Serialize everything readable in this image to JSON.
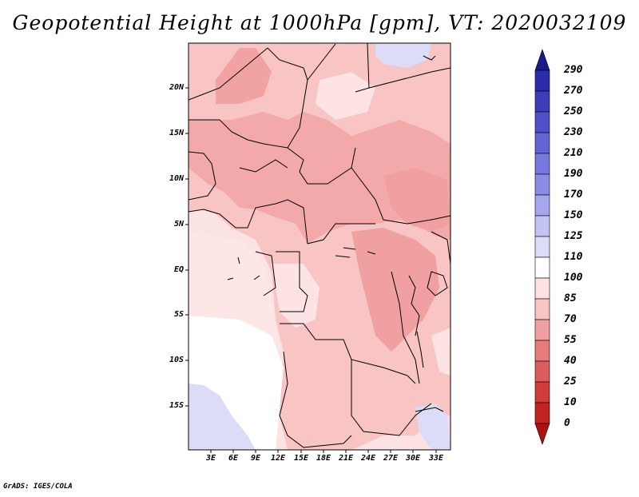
{
  "title": "Geopotential Height at 1000hPa [gpm], VT: 2020032109",
  "footer": "GrADS: IGES/COLA",
  "map": {
    "lon_range_deg": [
      0,
      35
    ],
    "lat_range_deg": [
      -20,
      25
    ],
    "lat_labels": [
      "20N",
      "15N",
      "10N",
      "5N",
      "EQ",
      "5S",
      "10S",
      "15S"
    ],
    "lon_labels": [
      "3E",
      "6E",
      "9E",
      "12E",
      "15E",
      "18E",
      "21E",
      "24E",
      "27E",
      "30E",
      "33E"
    ]
  },
  "colorbar": {
    "labels": [
      "290",
      "270",
      "250",
      "230",
      "210",
      "190",
      "170",
      "150",
      "125",
      "110",
      "100",
      "85",
      "70",
      "55",
      "40",
      "25",
      "10",
      "0"
    ],
    "colors": {
      "dark_navy": "#1a1a8c",
      "blue1": "#2c2ca8",
      "blue2": "#3d3db8",
      "blue3": "#5050c8",
      "blue4": "#6464d4",
      "blue5": "#7878de",
      "blue6": "#8c8ce6",
      "blue7": "#a6a6ee",
      "blue8": "#c4c4f4",
      "blue9": "#dcdcf8",
      "white": "#ffffff",
      "pink1": "#fde2e2",
      "pink2": "#f8c4c4",
      "pink3": "#f0a0a0",
      "red1": "#e67c7c",
      "red2": "#dc5c5c",
      "red3": "#d03c3c",
      "red4": "#c22424",
      "red5": "#b01010"
    }
  }
}
